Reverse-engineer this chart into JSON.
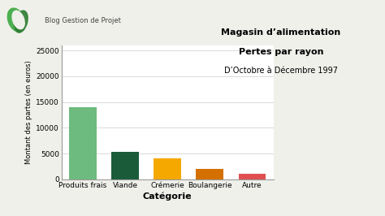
{
  "categories": [
    "Produits frais",
    "Viande",
    "Crémerie",
    "Boulangerie",
    "Autre"
  ],
  "values": [
    14000,
    5300,
    4000,
    2000,
    1000
  ],
  "bar_colors": [
    "#6dbb7e",
    "#1a5c3a",
    "#f5a800",
    "#d47000",
    "#e05050"
  ],
  "title_line1": "Magasin d’alimentation",
  "title_line2": "Pertes par rayon",
  "title_line3": "D’Octobre à Décembre 1997",
  "xlabel": "Catégorie",
  "ylabel": "Montant des partes (en euros)",
  "ylim": [
    0,
    26000
  ],
  "yticks": [
    0,
    5000,
    10000,
    15000,
    20000,
    25000
  ],
  "background_color": "#f0f0eb",
  "plot_bg_color": "#ffffff",
  "logo_text": "Blog Gestion de Projet",
  "logo_green1": "#4caf50",
  "logo_green2": "#2e7d32"
}
